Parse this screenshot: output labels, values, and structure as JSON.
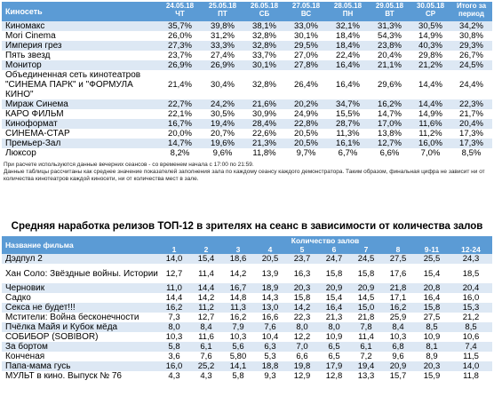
{
  "occupancy": {
    "header_first": "Киносеть",
    "dates": [
      {
        "date": "24.05.18",
        "day": "ЧТ"
      },
      {
        "date": "25.05.18",
        "day": "ПТ"
      },
      {
        "date": "26.05.18",
        "day": "СБ"
      },
      {
        "date": "27.05.18",
        "day": "ВС"
      },
      {
        "date": "28.05.18",
        "day": "ПН"
      },
      {
        "date": "29.05.18",
        "day": "ВТ"
      },
      {
        "date": "30.05.18",
        "day": "СР"
      }
    ],
    "header_total": [
      "Итого за",
      "период"
    ],
    "rows": [
      {
        "name": "Киномакс",
        "values": [
          "35,7%",
          "39,8%",
          "38,1%",
          "33,0%",
          "32,1%",
          "31,3%",
          "30,5%",
          "34,2%"
        ]
      },
      {
        "name": "Mori Cinema",
        "values": [
          "26,0%",
          "31,2%",
          "32,8%",
          "30,1%",
          "18,4%",
          "54,3%",
          "14,9%",
          "30,8%"
        ]
      },
      {
        "name": "Империя грез",
        "values": [
          "27,3%",
          "33,3%",
          "32,8%",
          "29,5%",
          "18,4%",
          "23,8%",
          "40,3%",
          "29,3%"
        ]
      },
      {
        "name": "Пять звезд",
        "values": [
          "23,7%",
          "27,4%",
          "33,7%",
          "27,0%",
          "22,4%",
          "20,4%",
          "29,8%",
          "26,7%"
        ]
      },
      {
        "name": "Монитор",
        "values": [
          "26,9%",
          "26,9%",
          "30,1%",
          "27,8%",
          "16,4%",
          "21,1%",
          "21,2%",
          "24,5%"
        ]
      },
      {
        "name": "Объединенная сеть кинотеатров \"СИНЕМА ПАРК\" и \"ФОРМУЛА КИНО\"",
        "values": [
          "21,4%",
          "30,4%",
          "32,8%",
          "26,4%",
          "16,4%",
          "29,6%",
          "14,4%",
          "24,4%"
        ]
      },
      {
        "name": "Мираж Синема",
        "values": [
          "22,7%",
          "24,2%",
          "21,6%",
          "20,2%",
          "34,7%",
          "16,2%",
          "14,4%",
          "22,3%"
        ]
      },
      {
        "name": "КАРО ФИЛЬМ",
        "values": [
          "22,1%",
          "30,5%",
          "30,9%",
          "24,9%",
          "15,5%",
          "14,7%",
          "14,9%",
          "21,7%"
        ]
      },
      {
        "name": "Киноформат",
        "values": [
          "16,7%",
          "19,4%",
          "28,4%",
          "22,8%",
          "28,7%",
          "17,0%",
          "11,6%",
          "20,4%"
        ]
      },
      {
        "name": "СИНЕМА-СТАР",
        "values": [
          "20,0%",
          "20,7%",
          "22,6%",
          "20,5%",
          "11,3%",
          "13,8%",
          "11,2%",
          "17,3%"
        ]
      },
      {
        "name": "Премьер-Зал",
        "values": [
          "14,7%",
          "19,6%",
          "21,3%",
          "20,5%",
          "16,1%",
          "12,7%",
          "16,0%",
          "17,3%"
        ]
      },
      {
        "name": "Люксор",
        "values": [
          "8,2%",
          "9,6%",
          "11,8%",
          "9,7%",
          "6,7%",
          "6,6%",
          "7,0%",
          "8,5%"
        ]
      }
    ],
    "note_lines": [
      "При расчете используются данные вечерних сеансов - со временем начала с 17:00 по 21:59.",
      "Данные таблицы рассчитаны как среднее значение показателей заполнения зала по каждому сеансу каждого демонстратора. Таким образом, финальная цифра не зависит ни от",
      "количества кинотеатров каждой киносети, ни от количества мест в зале."
    ]
  },
  "releases": {
    "title": "Средняя наработка релизов ТОП-12 в зрителях на сеанс в зависимости от количества залов",
    "header_first": "Название фильма",
    "header_group": "Количество залов",
    "columns": [
      "1",
      "2",
      "3",
      "4",
      "5",
      "6",
      "7",
      "8",
      "9-11",
      "12-24"
    ],
    "rows": [
      {
        "name": "Дэдпул 2",
        "values": [
          "14,0",
          "15,4",
          "18,6",
          "20,5",
          "23,7",
          "24,7",
          "24,5",
          "27,5",
          "25,5",
          "24,3"
        ]
      },
      {
        "name": "Хан Соло: Звёздные войны. Истории",
        "values": [
          "12,7",
          "11,4",
          "14,2",
          "13,9",
          "16,3",
          "15,8",
          "15,8",
          "17,6",
          "15,4",
          "18,5"
        ]
      },
      {
        "name": "Черновик",
        "values": [
          "11,0",
          "14,4",
          "16,7",
          "18,9",
          "20,3",
          "20,9",
          "20,9",
          "21,8",
          "20,8",
          "20,4"
        ]
      },
      {
        "name": "Садко",
        "values": [
          "14,4",
          "14,2",
          "14,8",
          "14,3",
          "15,8",
          "15,4",
          "14,5",
          "17,1",
          "16,4",
          "16,0"
        ]
      },
      {
        "name": "Секса не будет!!!",
        "values": [
          "16,2",
          "11,2",
          "11,3",
          "13,0",
          "14,2",
          "16,4",
          "15,0",
          "16,2",
          "15,8",
          "15,3"
        ]
      },
      {
        "name": "Мстители: Война бесконечности",
        "values": [
          "7,3",
          "12,7",
          "16,2",
          "16,6",
          "22,3",
          "21,3",
          "21,8",
          "25,9",
          "27,5",
          "21,2"
        ]
      },
      {
        "name": "Пчёлка Майя и Кубок мёда",
        "values": [
          "8,0",
          "8,4",
          "7,9",
          "7,6",
          "8,0",
          "8,0",
          "7,8",
          "8,4",
          "8,5",
          "8,5"
        ]
      },
      {
        "name": "СОБИБОР (SOBIBOR)",
        "values": [
          "10,3",
          "11,6",
          "10,3",
          "10,4",
          "12,2",
          "10,9",
          "11,4",
          "10,3",
          "10,9",
          "10,6"
        ]
      },
      {
        "name": "За бортом",
        "values": [
          "5,8",
          "6,1",
          "5,6",
          "6,3",
          "7,0",
          "6,5",
          "6,1",
          "6,8",
          "8,1",
          "7,4"
        ]
      },
      {
        "name": "Конченая",
        "values": [
          "3,6",
          "7,6",
          "5,80",
          "5,3",
          "6,6",
          "6,5",
          "7,2",
          "9,6",
          "8,9",
          "11,5"
        ]
      },
      {
        "name": "Папа-мама гусь",
        "values": [
          "16,0",
          "25,2",
          "14,1",
          "18,8",
          "19,8",
          "17,9",
          "19,4",
          "20,9",
          "20,3",
          "14,0"
        ]
      },
      {
        "name": "МУЛЬТ в кино. Выпуск № 76",
        "values": [
          "4,3",
          "4,3",
          "5,8",
          "9,3",
          "12,9",
          "12,8",
          "13,3",
          "15,7",
          "15,9",
          "11,8"
        ]
      }
    ]
  }
}
